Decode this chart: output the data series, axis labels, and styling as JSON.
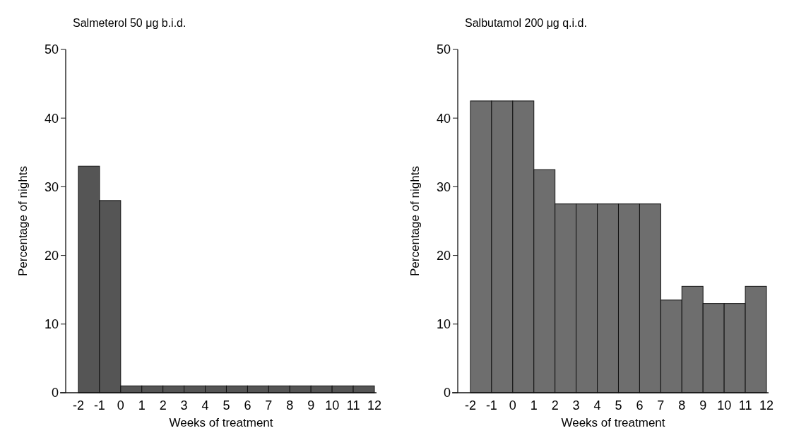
{
  "chart_data": [
    {
      "type": "histogram",
      "title": "Salmeterol 50 μg b.i.d.",
      "xlabel": "Weeks of treatment",
      "ylabel": "Percentage of nights",
      "bins": [
        -2,
        -1,
        0,
        1,
        2,
        3,
        4,
        5,
        6,
        7,
        8,
        9,
        10,
        11,
        12
      ],
      "values": [
        33,
        28,
        1,
        1,
        1,
        1,
        1,
        1,
        1,
        1,
        1,
        1,
        1,
        1
      ],
      "color": "#555555",
      "xlim": [
        -2.6,
        12.1
      ],
      "xticks": [
        -2,
        -1,
        0,
        1,
        2,
        3,
        4,
        5,
        6,
        7,
        8,
        9,
        10,
        11,
        12
      ],
      "ylim": [
        0,
        50
      ],
      "yticks": [
        0,
        10,
        20,
        30,
        40,
        50
      ],
      "grid": false
    },
    {
      "type": "histogram",
      "title": "Salbutamol 200 μg q.i.d.",
      "xlabel": "Weeks of treatment",
      "ylabel": "Percentage of nights",
      "bins": [
        -2,
        -1,
        0,
        1,
        2,
        3,
        4,
        5,
        6,
        7,
        8,
        9,
        10,
        11,
        12
      ],
      "values": [
        42.5,
        42.5,
        42.5,
        32.5,
        27.5,
        27.5,
        27.5,
        27.5,
        27.5,
        13.5,
        15.5,
        13,
        13,
        15.5
      ],
      "color": "#6e6e6e",
      "xlim": [
        -2.6,
        12.1
      ],
      "xticks": [
        -2,
        -1,
        0,
        1,
        2,
        3,
        4,
        5,
        6,
        7,
        8,
        9,
        10,
        11,
        12
      ],
      "ylim": [
        0,
        50
      ],
      "yticks": [
        0,
        10,
        20,
        30,
        40,
        50
      ],
      "grid": false
    }
  ]
}
